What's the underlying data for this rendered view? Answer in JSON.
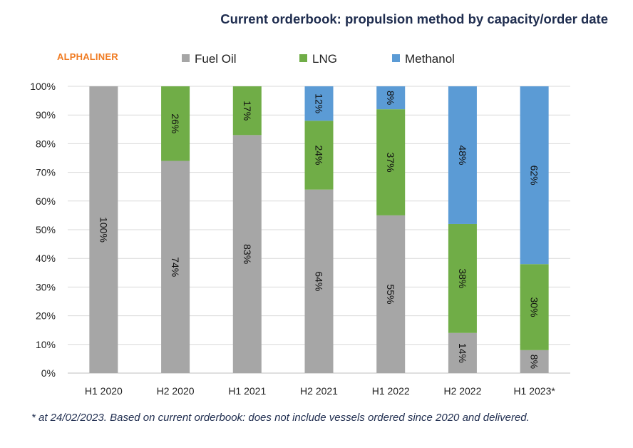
{
  "title": "Current orderbook: propulsion method by capacity/order date",
  "brand": "ALPHALINER",
  "footnote": "* at 24/02/2023. Based on current orderbook: does not include vessels ordered since 2020 and delivered.",
  "chart_data": {
    "type": "bar",
    "stacked": true,
    "categories": [
      "H1 2020",
      "H2 2020",
      "H1 2021",
      "H2 2021",
      "H1 2022",
      "H2 2022",
      "H1 2023*"
    ],
    "series": [
      {
        "name": "Fuel Oil",
        "color": "#a6a6a6",
        "values": [
          100,
          74,
          83,
          64,
          55,
          14,
          8
        ]
      },
      {
        "name": "LNG",
        "color": "#70ad47",
        "values": [
          0,
          26,
          17,
          24,
          37,
          38,
          30
        ]
      },
      {
        "name": "Methanol",
        "color": "#5b9bd5",
        "values": [
          0,
          0,
          0,
          12,
          8,
          48,
          62
        ]
      }
    ],
    "data_labels": [
      [
        "100%",
        "74%",
        "83%",
        "64%",
        "55%",
        "14%",
        "8%"
      ],
      [
        "",
        "26%",
        "17%",
        "24%",
        "37%",
        "38%",
        "30%"
      ],
      [
        "",
        "",
        "",
        "12%",
        "8%",
        "48%",
        "62%"
      ]
    ],
    "y_ticks": [
      "0%",
      "10%",
      "20%",
      "30%",
      "40%",
      "50%",
      "60%",
      "70%",
      "80%",
      "90%",
      "100%"
    ],
    "ylim": [
      0,
      100
    ],
    "grid": true,
    "legend": "top"
  }
}
